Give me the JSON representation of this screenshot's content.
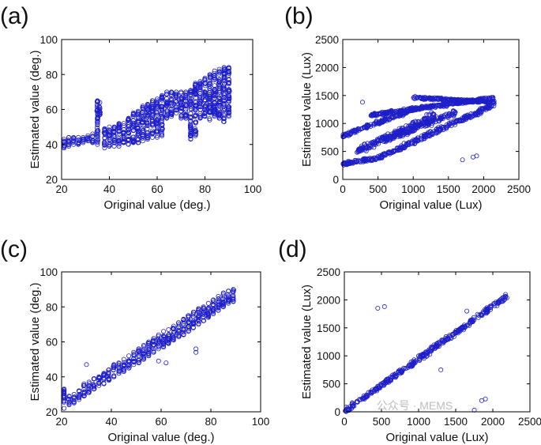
{
  "watermark": "公众号 · MEMS",
  "chart_data": [
    {
      "panel": "(a)",
      "type": "scatter",
      "xlabel": "Original value (deg.)",
      "ylabel": "Estimated value (deg.)",
      "xlim": [
        20,
        100
      ],
      "ylim": [
        20,
        100
      ],
      "xticks": [
        20,
        40,
        60,
        80,
        100
      ],
      "yticks": [
        20,
        40,
        60,
        80,
        100
      ],
      "marker": "open-circle",
      "color": "#1f1fc8",
      "columns": [
        {
          "x": 21,
          "y_min": 38,
          "y_max": 43
        },
        {
          "x": 23,
          "y_min": 39,
          "y_max": 44
        },
        {
          "x": 25,
          "y_min": 40,
          "y_max": 44
        },
        {
          "x": 27,
          "y_min": 40,
          "y_max": 44
        },
        {
          "x": 29,
          "y_min": 41,
          "y_max": 44
        },
        {
          "x": 31,
          "y_min": 42,
          "y_max": 45
        },
        {
          "x": 33,
          "y_min": 41,
          "y_max": 46
        },
        {
          "x": 35,
          "y_min": 40,
          "y_max": 65
        },
        {
          "x": 36,
          "y_min": 57,
          "y_max": 64
        },
        {
          "x": 38,
          "y_min": 38,
          "y_max": 49
        },
        {
          "x": 40,
          "y_min": 39,
          "y_max": 50
        },
        {
          "x": 42,
          "y_min": 39,
          "y_max": 50
        },
        {
          "x": 44,
          "y_min": 39,
          "y_max": 52
        },
        {
          "x": 46,
          "y_min": 41,
          "y_max": 52
        },
        {
          "x": 48,
          "y_min": 40,
          "y_max": 55
        },
        {
          "x": 50,
          "y_min": 41,
          "y_max": 58
        },
        {
          "x": 52,
          "y_min": 41,
          "y_max": 59
        },
        {
          "x": 54,
          "y_min": 42,
          "y_max": 62
        },
        {
          "x": 56,
          "y_min": 43,
          "y_max": 63
        },
        {
          "x": 58,
          "y_min": 44,
          "y_max": 65
        },
        {
          "x": 60,
          "y_min": 44,
          "y_max": 66
        },
        {
          "x": 62,
          "y_min": 45,
          "y_max": 68
        },
        {
          "x": 64,
          "y_min": 55,
          "y_max": 70
        },
        {
          "x": 66,
          "y_min": 56,
          "y_max": 70
        },
        {
          "x": 68,
          "y_min": 58,
          "y_max": 70
        },
        {
          "x": 70,
          "y_min": 55,
          "y_max": 70
        },
        {
          "x": 72,
          "y_min": 55,
          "y_max": 70
        },
        {
          "x": 74,
          "y_min": 43,
          "y_max": 71
        },
        {
          "x": 76,
          "y_min": 45,
          "y_max": 75
        },
        {
          "x": 78,
          "y_min": 55,
          "y_max": 76
        },
        {
          "x": 80,
          "y_min": 56,
          "y_max": 78
        },
        {
          "x": 82,
          "y_min": 54,
          "y_max": 80
        },
        {
          "x": 84,
          "y_min": 56,
          "y_max": 82
        },
        {
          "x": 86,
          "y_min": 55,
          "y_max": 83
        },
        {
          "x": 88,
          "y_min": 53,
          "y_max": 84
        },
        {
          "x": 90,
          "y_min": 56,
          "y_max": 84
        }
      ]
    },
    {
      "panel": "(b)",
      "type": "scatter",
      "xlabel": "Original value (Lux)",
      "ylabel": "Estimated value (Lux)",
      "xlim": [
        0,
        2500
      ],
      "ylim": [
        0,
        2500
      ],
      "xticks": [
        0,
        500,
        1000,
        1500,
        2000,
        2500
      ],
      "yticks": [
        0,
        500,
        1000,
        1500,
        2000,
        2500
      ],
      "marker": "open-circle",
      "color": "#1f1fc8",
      "bands": [
        {
          "x_start": 0,
          "x_end": 500,
          "y_start": 280,
          "y_end": 380,
          "spread": 40
        },
        {
          "x_start": 500,
          "x_end": 2150,
          "y_start": 380,
          "y_end": 1340,
          "spread": 70
        },
        {
          "x_start": 0,
          "x_end": 1000,
          "y_start": 780,
          "y_end": 1250,
          "spread": 50
        },
        {
          "x_start": 400,
          "x_end": 2150,
          "y_start": 1150,
          "y_end": 1460,
          "spread": 40
        },
        {
          "x_start": 1000,
          "x_end": 2150,
          "y_start": 1460,
          "y_end": 1380,
          "spread": 30
        },
        {
          "x_start": 200,
          "x_end": 1300,
          "y_start": 500,
          "y_end": 1150,
          "spread": 90
        },
        {
          "x_start": 600,
          "x_end": 1600,
          "y_start": 700,
          "y_end": 1200,
          "spread": 80
        }
      ],
      "outliers": [
        {
          "x": 1700,
          "y": 350
        },
        {
          "x": 1850,
          "y": 400
        },
        {
          "x": 1900,
          "y": 420
        },
        {
          "x": 280,
          "y": 1380
        }
      ]
    },
    {
      "panel": "(c)",
      "type": "scatter",
      "xlabel": "Original value (deg.)",
      "ylabel": "Estimated value (deg.)",
      "xlim": [
        20,
        100
      ],
      "ylim": [
        20,
        100
      ],
      "xticks": [
        20,
        40,
        60,
        80,
        100
      ],
      "yticks": [
        20,
        40,
        60,
        80,
        100
      ],
      "marker": "open-circle",
      "color": "#1f1fc8",
      "columns": [
        {
          "x": 21,
          "y_min": 22,
          "y_max": 33
        },
        {
          "x": 23,
          "y_min": 24,
          "y_max": 29
        },
        {
          "x": 25,
          "y_min": 25,
          "y_max": 30
        },
        {
          "x": 27,
          "y_min": 27,
          "y_max": 32
        },
        {
          "x": 29,
          "y_min": 29,
          "y_max": 36
        },
        {
          "x": 31,
          "y_min": 31,
          "y_max": 37
        },
        {
          "x": 33,
          "y_min": 33,
          "y_max": 39
        },
        {
          "x": 35,
          "y_min": 35,
          "y_max": 40
        },
        {
          "x": 37,
          "y_min": 36,
          "y_max": 42
        },
        {
          "x": 39,
          "y_min": 38,
          "y_max": 44
        },
        {
          "x": 41,
          "y_min": 40,
          "y_max": 47
        },
        {
          "x": 43,
          "y_min": 42,
          "y_max": 48
        },
        {
          "x": 45,
          "y_min": 43,
          "y_max": 50
        },
        {
          "x": 47,
          "y_min": 45,
          "y_max": 52
        },
        {
          "x": 49,
          "y_min": 47,
          "y_max": 54
        },
        {
          "x": 51,
          "y_min": 48,
          "y_max": 56
        },
        {
          "x": 53,
          "y_min": 50,
          "y_max": 58
        },
        {
          "x": 55,
          "y_min": 52,
          "y_max": 60
        },
        {
          "x": 57,
          "y_min": 54,
          "y_max": 62
        },
        {
          "x": 59,
          "y_min": 56,
          "y_max": 64
        },
        {
          "x": 61,
          "y_min": 57,
          "y_max": 66
        },
        {
          "x": 63,
          "y_min": 59,
          "y_max": 67
        },
        {
          "x": 65,
          "y_min": 61,
          "y_max": 69
        },
        {
          "x": 67,
          "y_min": 63,
          "y_max": 71
        },
        {
          "x": 69,
          "y_min": 64,
          "y_max": 73
        },
        {
          "x": 71,
          "y_min": 66,
          "y_max": 75
        },
        {
          "x": 73,
          "y_min": 68,
          "y_max": 77
        },
        {
          "x": 75,
          "y_min": 70,
          "y_max": 79
        },
        {
          "x": 77,
          "y_min": 72,
          "y_max": 80
        },
        {
          "x": 79,
          "y_min": 74,
          "y_max": 82
        },
        {
          "x": 81,
          "y_min": 76,
          "y_max": 84
        },
        {
          "x": 83,
          "y_min": 78,
          "y_max": 86
        },
        {
          "x": 85,
          "y_min": 80,
          "y_max": 88
        },
        {
          "x": 87,
          "y_min": 82,
          "y_max": 89
        },
        {
          "x": 89,
          "y_min": 83,
          "y_max": 90
        }
      ],
      "outliers": [
        {
          "x": 30,
          "y": 47
        },
        {
          "x": 59,
          "y": 49
        },
        {
          "x": 62,
          "y": 48
        },
        {
          "x": 74,
          "y": 54
        },
        {
          "x": 74,
          "y": 56
        }
      ]
    },
    {
      "panel": "(d)",
      "type": "scatter",
      "xlabel": "Original value (Lux)",
      "ylabel": "Estimated value (Lux)",
      "xlim": [
        0,
        2500
      ],
      "ylim": [
        0,
        2500
      ],
      "xticks": [
        0,
        500,
        1000,
        1500,
        2000,
        2500
      ],
      "yticks": [
        0,
        500,
        1000,
        1500,
        2000,
        2500
      ],
      "marker": "open-circle",
      "color": "#1f1fc8",
      "bands": [
        {
          "x_start": 0,
          "x_end": 2200,
          "y_start": 0,
          "y_end": 2080,
          "spread": 70
        }
      ],
      "outliers": [
        {
          "x": 450,
          "y": 1850
        },
        {
          "x": 540,
          "y": 1880
        },
        {
          "x": 1650,
          "y": 1800
        },
        {
          "x": 1700,
          "y": 1600
        },
        {
          "x": 1850,
          "y": 200
        },
        {
          "x": 1900,
          "y": 230
        },
        {
          "x": 1750,
          "y": 30
        },
        {
          "x": 1300,
          "y": 750
        }
      ]
    }
  ]
}
